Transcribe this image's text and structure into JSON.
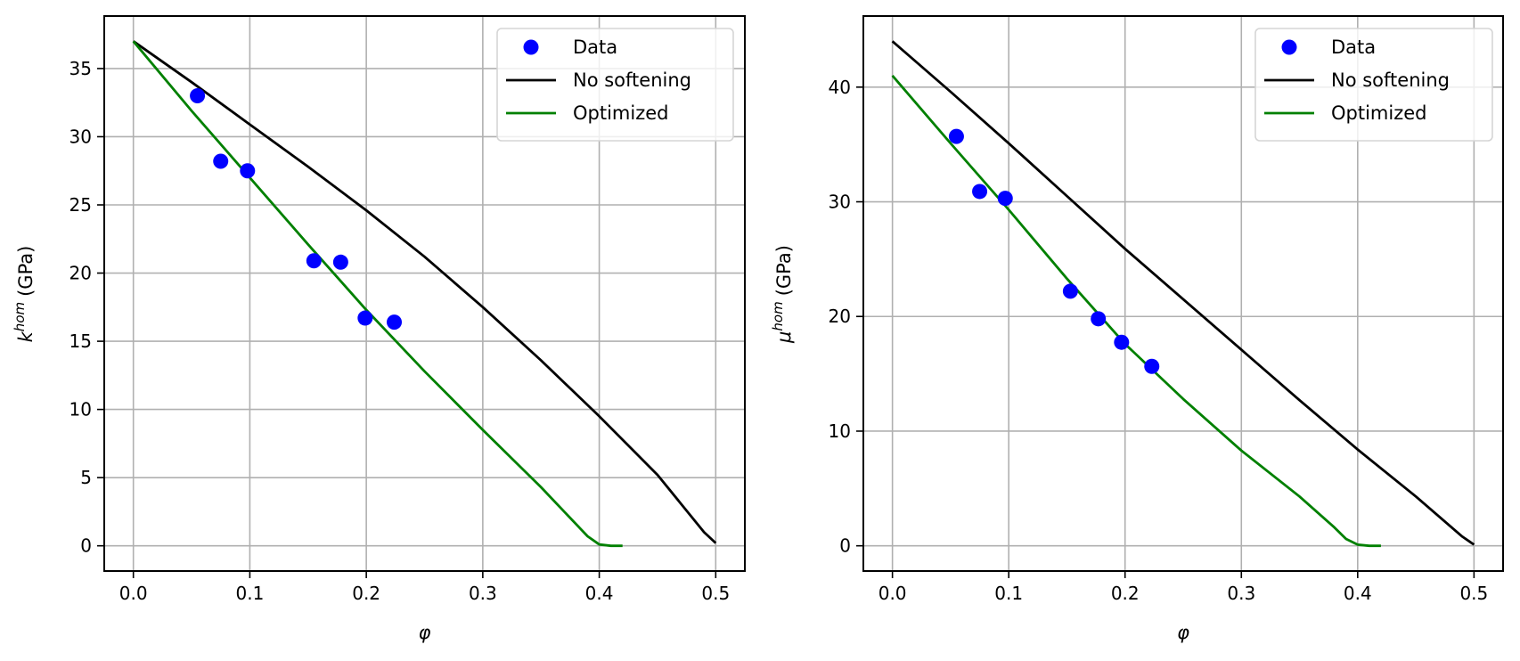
{
  "chart_data": [
    {
      "type": "line",
      "title": "",
      "xlabel": "φ",
      "ylabel": "k",
      "ylabel_superscript": "hom",
      "ylabel_unit": "(GPa)",
      "xlim": [
        -0.025,
        0.525
      ],
      "ylim": [
        -1.85,
        38.85
      ],
      "xticks": [
        0.0,
        0.1,
        0.2,
        0.3,
        0.4,
        0.5
      ],
      "xtick_labels": [
        "0.0",
        "0.1",
        "0.2",
        "0.3",
        "0.4",
        "0.5"
      ],
      "yticks": [
        0,
        5,
        10,
        15,
        20,
        25,
        30,
        35
      ],
      "ytick_labels": [
        "0",
        "5",
        "10",
        "15",
        "20",
        "25",
        "30",
        "35"
      ],
      "grid": true,
      "legend": "top-right",
      "series": [
        {
          "name": "Data",
          "kind": "scatter",
          "color": "#0000ff",
          "x": [
            0.055,
            0.075,
            0.098,
            0.155,
            0.178,
            0.199,
            0.224
          ],
          "y": [
            33.0,
            28.2,
            27.5,
            20.9,
            20.8,
            16.7,
            16.4
          ]
        },
        {
          "name": "No softening",
          "kind": "line",
          "color": "#000000",
          "x": [
            0.0,
            0.05,
            0.1,
            0.15,
            0.2,
            0.25,
            0.3,
            0.35,
            0.4,
            0.45,
            0.49,
            0.5
          ],
          "y": [
            37.0,
            34.0,
            30.9,
            27.8,
            24.6,
            21.2,
            17.5,
            13.6,
            9.5,
            5.2,
            1.0,
            0.2
          ]
        },
        {
          "name": "Optimized",
          "kind": "line",
          "color": "#008000",
          "x": [
            0.0,
            0.05,
            0.1,
            0.15,
            0.2,
            0.25,
            0.3,
            0.35,
            0.38,
            0.39,
            0.4,
            0.41,
            0.42
          ],
          "y": [
            37.0,
            31.9,
            27.0,
            22.1,
            17.3,
            12.8,
            8.5,
            4.3,
            1.6,
            0.7,
            0.1,
            0.0,
            0.0
          ]
        }
      ]
    },
    {
      "type": "line",
      "title": "",
      "xlabel": "φ",
      "ylabel": "μ",
      "ylabel_superscript": "hom",
      "ylabel_unit": "(GPa)",
      "xlim": [
        -0.025,
        0.525
      ],
      "ylim": [
        -2.2,
        46.2
      ],
      "xticks": [
        0.0,
        0.1,
        0.2,
        0.3,
        0.4,
        0.5
      ],
      "xtick_labels": [
        "0.0",
        "0.1",
        "0.2",
        "0.3",
        "0.4",
        "0.5"
      ],
      "yticks": [
        0,
        10,
        20,
        30,
        40
      ],
      "ytick_labels": [
        "0",
        "10",
        "20",
        "30",
        "40"
      ],
      "grid": true,
      "legend": "top-right",
      "series": [
        {
          "name": "Data",
          "kind": "scatter",
          "color": "#0000ff",
          "x": [
            0.055,
            0.075,
            0.097,
            0.153,
            0.177,
            0.197,
            0.223
          ],
          "y": [
            35.7,
            30.9,
            30.3,
            22.2,
            19.8,
            17.75,
            15.65
          ]
        },
        {
          "name": "No softening",
          "kind": "line",
          "color": "#000000",
          "x": [
            0.0,
            0.05,
            0.1,
            0.15,
            0.2,
            0.25,
            0.3,
            0.35,
            0.4,
            0.45,
            0.49,
            0.5
          ],
          "y": [
            44.0,
            39.6,
            35.1,
            30.5,
            25.9,
            21.5,
            17.1,
            12.7,
            8.4,
            4.3,
            0.8,
            0.1
          ]
        },
        {
          "name": "Optimized",
          "kind": "line",
          "color": "#008000",
          "x": [
            0.0,
            0.05,
            0.1,
            0.15,
            0.2,
            0.25,
            0.3,
            0.35,
            0.38,
            0.39,
            0.4,
            0.41,
            0.42
          ],
          "y": [
            41.0,
            35.1,
            29.3,
            23.3,
            17.6,
            12.8,
            8.3,
            4.3,
            1.6,
            0.6,
            0.1,
            0.0,
            0.0
          ]
        }
      ]
    }
  ]
}
